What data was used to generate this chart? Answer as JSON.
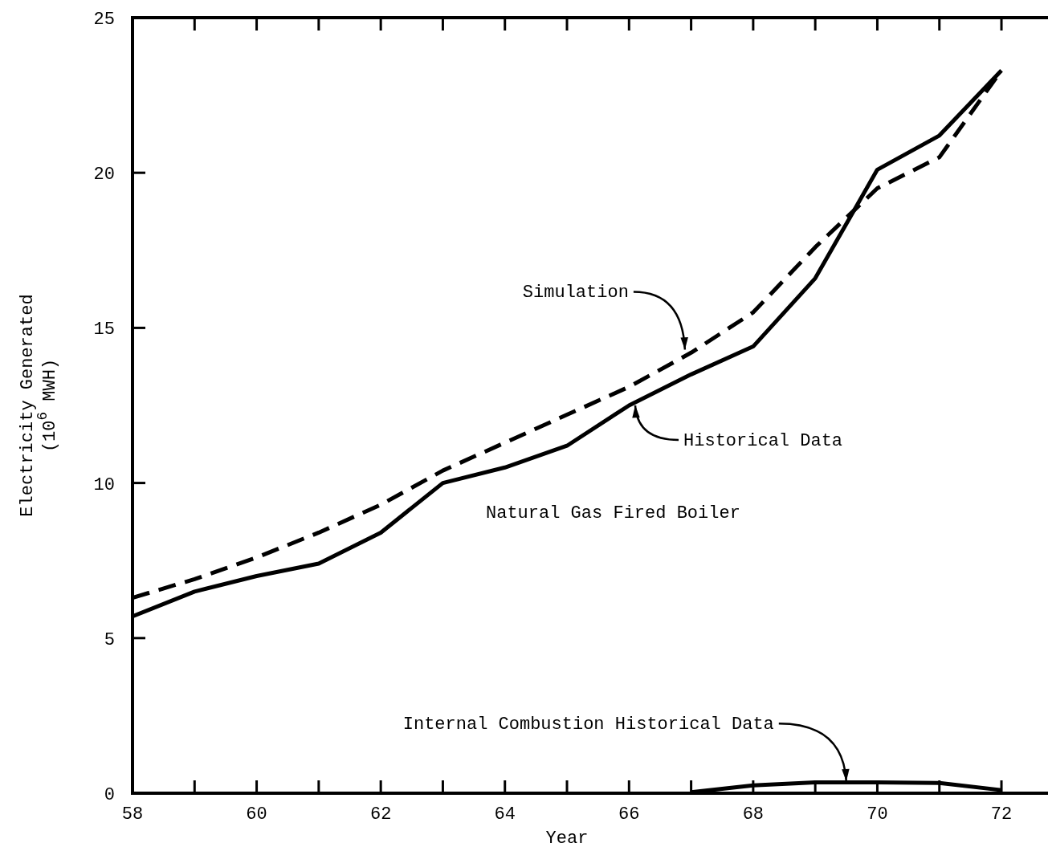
{
  "chart_data": {
    "type": "line",
    "ylabel": "Electricity Generated\n(10$^{6}$ MWH)",
    "xlabel": "Year",
    "xlim": [
      58,
      72.75
    ],
    "ylim": [
      0,
      25
    ],
    "xticks": [
      58,
      {
        "value": 59,
        "label": null
      },
      60,
      {
        "value": 61,
        "label": null
      },
      62,
      {
        "value": 63,
        "label": null
      },
      64,
      {
        "value": 65,
        "label": null
      },
      66,
      {
        "value": 67,
        "label": null
      },
      68,
      {
        "value": 69,
        "label": null
      },
      70,
      {
        "value": 71,
        "label": null
      },
      72
    ],
    "yticks": [
      0,
      5,
      10,
      15,
      20,
      25
    ],
    "grid": false,
    "series": [
      {
        "color": "#000000",
        "line_style": "dashed",
        "x": [
          58,
          59,
          60,
          61,
          62,
          63,
          64,
          65,
          66,
          67,
          68,
          69,
          70,
          71,
          72
        ],
        "values": [
          6.3,
          6.9,
          7.6,
          8.4,
          9.3,
          10.4,
          11.3,
          12.2,
          13.1,
          14.2,
          15.5,
          17.6,
          19.5,
          20.5,
          23.3
        ]
      },
      {
        "color": "#000000",
        "line_style": "solid",
        "x": [
          58,
          59,
          60,
          61,
          62,
          63,
          64,
          65,
          66,
          67,
          68,
          69,
          70,
          71,
          72
        ],
        "values": [
          5.7,
          6.5,
          7.0,
          7.4,
          8.4,
          10.0,
          10.5,
          11.2,
          12.5,
          13.5,
          14.4,
          16.6,
          20.1,
          21.2,
          23.3
        ]
      },
      {
        "color": "#000000",
        "line_style": "solid",
        "x": [
          67,
          68,
          69,
          70,
          71,
          72
        ],
        "values": [
          0.03,
          0.25,
          0.35,
          0.35,
          0.33,
          0.1
        ]
      }
    ],
    "annotations": [
      {
        "text": "Simulation",
        "x": 66.9,
        "y": 14.3
      },
      {
        "text": "Historical Data",
        "x": 66.1,
        "y": 12.5
      },
      "Natural Gas Fired Boiler",
      {
        "text": "Internal Combustion Historical Data",
        "x": 69.5,
        "y": 0.38
      }
    ]
  }
}
